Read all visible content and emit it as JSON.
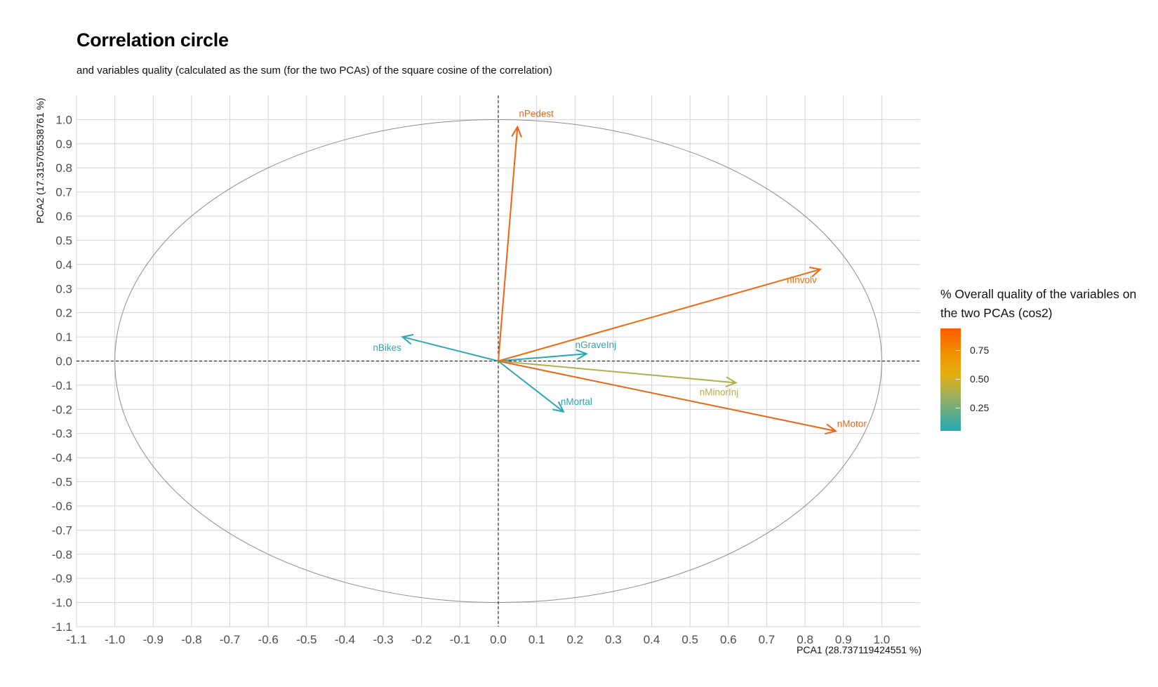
{
  "title": "Correlation circle",
  "subtitle": "and variables quality (calculated as the sum (for the two PCAs) of the square cosine of the correlation)",
  "chart_data": {
    "type": "scatter",
    "subtype": "correlation-circle",
    "xlabel": "PCA1 (28.737119424551 %)",
    "ylabel": "PCA2 (17.315705538761 %)",
    "xlim": [
      -1.1,
      1.1
    ],
    "ylim": [
      -1.1,
      1.1
    ],
    "ticks": [
      -1.1,
      -1.0,
      -0.9,
      -0.8,
      -0.7,
      -0.6,
      -0.5,
      -0.4,
      -0.3,
      -0.2,
      -0.1,
      0.0,
      0.1,
      0.2,
      0.3,
      0.4,
      0.5,
      0.6,
      0.7,
      0.8,
      0.9,
      1.0
    ],
    "tick_labels": [
      "-1.1",
      "-1.0",
      "-0.9",
      "-0.8",
      "-0.7",
      "-0.6",
      "-0.5",
      "-0.4",
      "-0.3",
      "-0.2",
      "-0.1",
      "0.0",
      "0.1",
      "0.2",
      "0.3",
      "0.4",
      "0.5",
      "0.6",
      "0.7",
      "0.8",
      "0.9",
      "1.0"
    ],
    "grid": true,
    "unit_circle": true,
    "reference_lines": {
      "x": 0,
      "y": 0,
      "style": "dashed"
    },
    "variables": [
      {
        "name": "nPedest",
        "x": 0.05,
        "y": 0.97,
        "cos2": 0.94,
        "color": "#f4610f"
      },
      {
        "name": "nInvolv",
        "x": 0.84,
        "y": 0.38,
        "cos2": 0.85,
        "color": "#ef6a0c"
      },
      {
        "name": "nBikes",
        "x": -0.25,
        "y": 0.1,
        "cos2": 0.07,
        "color": "#2fa7b3"
      },
      {
        "name": "nGraveInj",
        "x": 0.23,
        "y": 0.03,
        "cos2": 0.05,
        "color": "#26a7b6"
      },
      {
        "name": "nMinorInj",
        "x": 0.62,
        "y": -0.09,
        "cos2": 0.39,
        "color": "#b3ae4d"
      },
      {
        "name": "nMortal",
        "x": 0.17,
        "y": -0.21,
        "cos2": 0.07,
        "color": "#30a5b0"
      },
      {
        "name": "nMotor",
        "x": 0.88,
        "y": -0.29,
        "cos2": 0.86,
        "color": "#ea6516"
      }
    ],
    "legend": {
      "title": "% Overall quality of the variables on the two PCAs (cos2)",
      "placement": "right",
      "type": "colorbar",
      "range": [
        0.05,
        0.94
      ],
      "breaks": [
        0.25,
        0.5,
        0.75
      ],
      "break_labels": [
        "0.25",
        "0.50",
        "0.75"
      ],
      "colors_low_to_high": [
        "#22a9b5",
        "#e3b010",
        "#ff5a00"
      ]
    }
  }
}
